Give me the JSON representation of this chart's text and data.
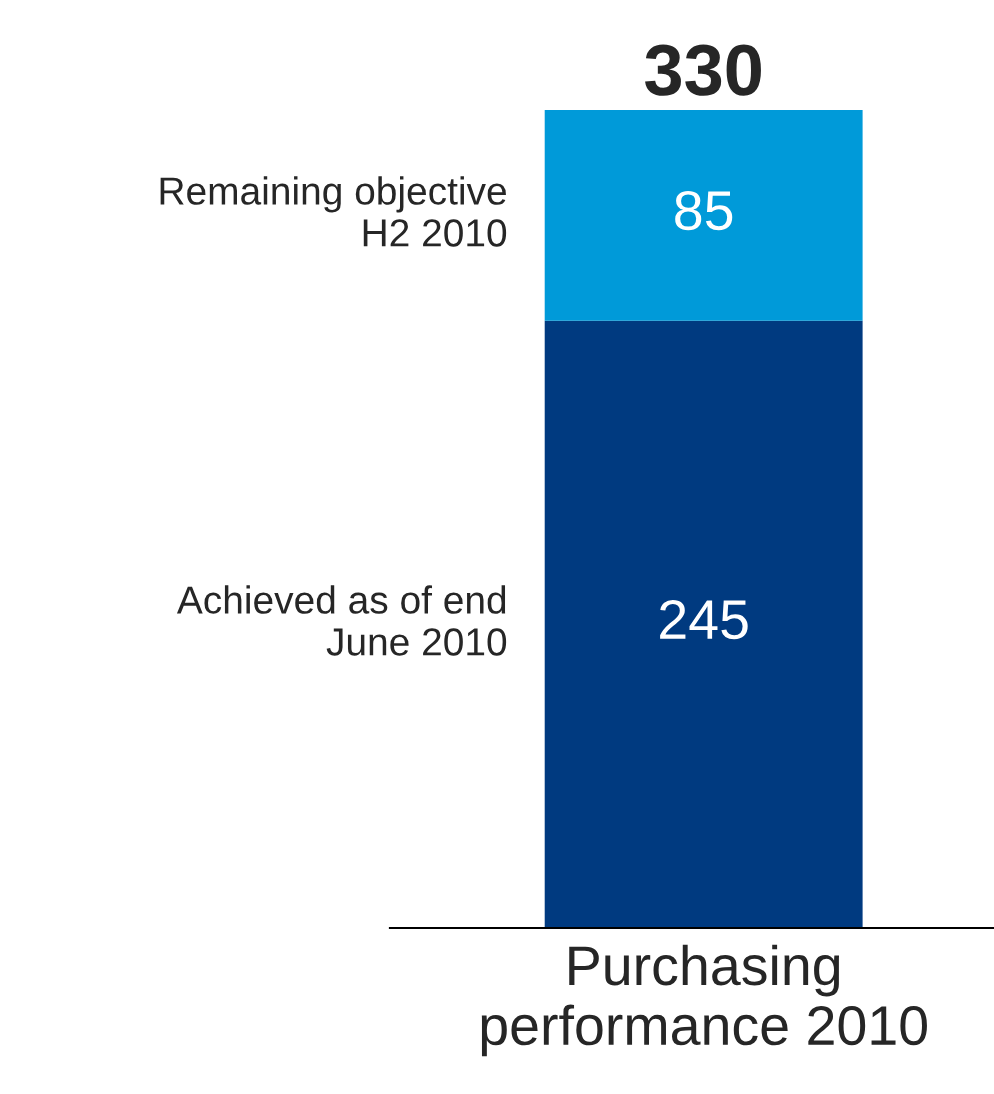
{
  "chart_data": {
    "type": "bar",
    "stacked": true,
    "categories": [
      "Purchasing\nperformance 2010"
    ],
    "series": [
      {
        "name": "Achieved as of end\nJune 2010",
        "color": "#003a80",
        "values": [
          245
        ]
      },
      {
        "name": "Remaining objective\nH2 2010",
        "color": "#009ad9",
        "values": [
          85
        ]
      }
    ],
    "data_labels": true,
    "totals": [
      "330"
    ],
    "legend": false
  }
}
